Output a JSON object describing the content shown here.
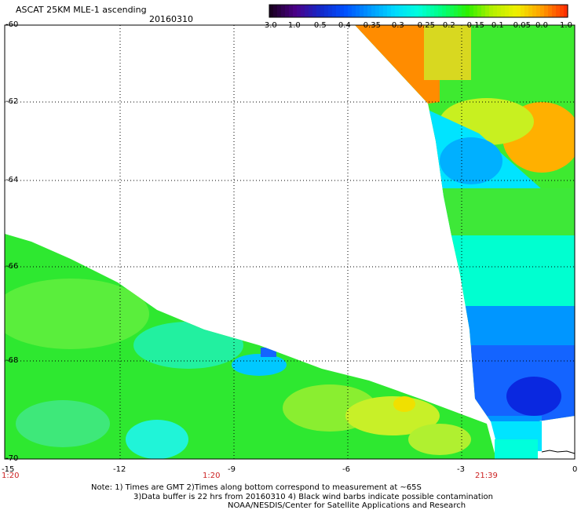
{
  "header": {
    "title": "ASCAT 25KM MLE-1 ascending",
    "date": "20160310"
  },
  "colorbar": {
    "labels": [
      "-3.0",
      "-1.0",
      "-0.5",
      "-0.4",
      "-0.35",
      "-0.3",
      "-0.25",
      "-0.2",
      "-0.15",
      "-0.1",
      "-0.05",
      "0.0",
      "1.0"
    ],
    "colors": [
      "#1a0022",
      "#4b0088",
      "#1428c8",
      "#0050ff",
      "#0096ff",
      "#00d8ff",
      "#00ffdc",
      "#00ff78",
      "#2cf000",
      "#b4f000",
      "#f0f000",
      "#ffa000",
      "#ff3000"
    ]
  },
  "axes": {
    "lat_labels": [
      "-60",
      "-62",
      "-64",
      "-66",
      "-68",
      "-70"
    ],
    "lon_labels": [
      "-15",
      "-12",
      "-9",
      "-6",
      "-3",
      "0"
    ],
    "time_labels": [
      "1:20",
      "1:20",
      "21:39"
    ]
  },
  "footer": {
    "line1": "Note: 1) Times are GMT 2)Times along bottom correspond to measurement at ~65S",
    "line2": "3)Data buffer is 22 hrs from 20160310 4) Black wind barbs indicate possible contamination",
    "line3": "NOAA/NESDIS/Center for Satellite Applications and Research"
  }
}
